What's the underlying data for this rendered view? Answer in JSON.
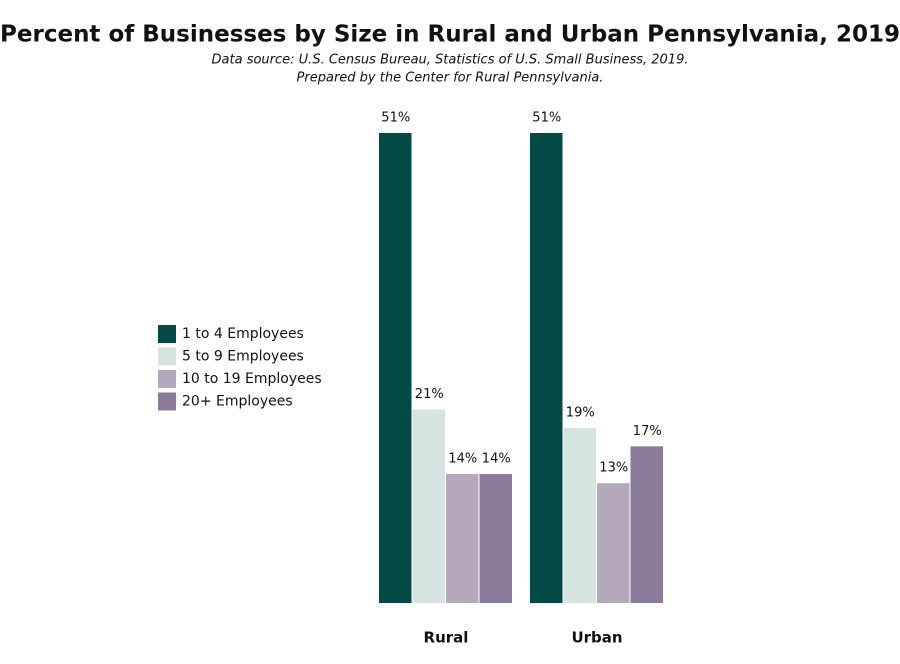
{
  "chart_data": {
    "type": "bar",
    "title": "Percent of Businesses by Size in Rural and Urban Pennsylvania, 2019",
    "subtitle": [
      "Data source: U.S. Census Bureau, Statistics of U.S. Small Business, 2019.",
      "Prepared by the Center for Rural Pennsylvania."
    ],
    "categories": [
      "Rural",
      "Urban"
    ],
    "series": [
      {
        "name": "1 to 4 Employees",
        "color": "#014a45",
        "values": [
          51,
          51
        ],
        "value_labels": [
          "51%",
          "51%"
        ]
      },
      {
        "name": "5 to 9 Employees",
        "color": "#d5e3e1",
        "values": [
          21,
          19
        ],
        "value_labels": [
          "21%",
          "19%"
        ]
      },
      {
        "name": "10 to 19 Employees",
        "color": "#b3a8bc",
        "values": [
          14,
          13
        ],
        "value_labels": [
          "14%",
          "13%"
        ]
      },
      {
        "name": "20+ Employees",
        "color": "#8b7b9b",
        "values": [
          14,
          17
        ],
        "value_labels": [
          "14%",
          "17%"
        ]
      }
    ]
  }
}
